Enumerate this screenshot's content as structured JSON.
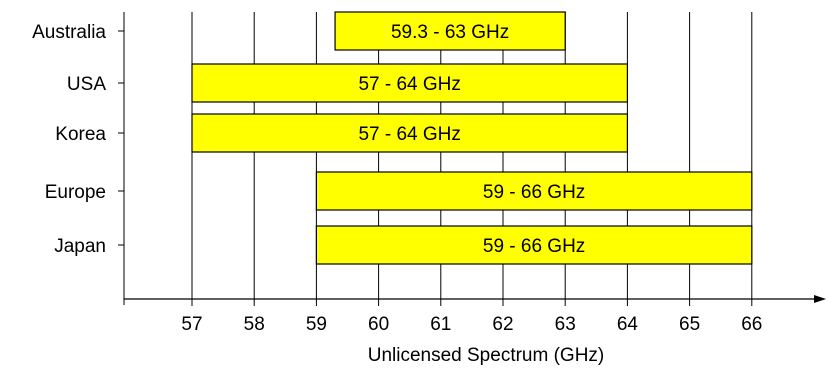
{
  "chart_data": {
    "type": "bar",
    "orientation": "horizontal-range",
    "categories": [
      "Australia",
      "USA",
      "Korea",
      "Europe",
      "Japan"
    ],
    "ranges": [
      {
        "category": "Australia",
        "start": 59.3,
        "end": 63,
        "label": "59.3 - 63 GHz"
      },
      {
        "category": "USA",
        "start": 57,
        "end": 64,
        "label": "57 - 64 GHz"
      },
      {
        "category": "Korea",
        "start": 57,
        "end": 64,
        "label": "57 - 64 GHz"
      },
      {
        "category": "Europe",
        "start": 59,
        "end": 66,
        "label": "59 - 66 GHz"
      },
      {
        "category": "Japan",
        "start": 59,
        "end": 66,
        "label": "59 - 66 GHz"
      }
    ],
    "xticks": [
      57,
      58,
      59,
      60,
      61,
      62,
      63,
      64,
      65,
      66
    ],
    "xlim": [
      55.1,
      67.2
    ],
    "xlabel": "Unlicensed Spectrum (GHz)",
    "ylabel": "",
    "title": "",
    "grid": "vertical",
    "bar_color": "#ffff00",
    "bar_edge_color": "#000000"
  }
}
